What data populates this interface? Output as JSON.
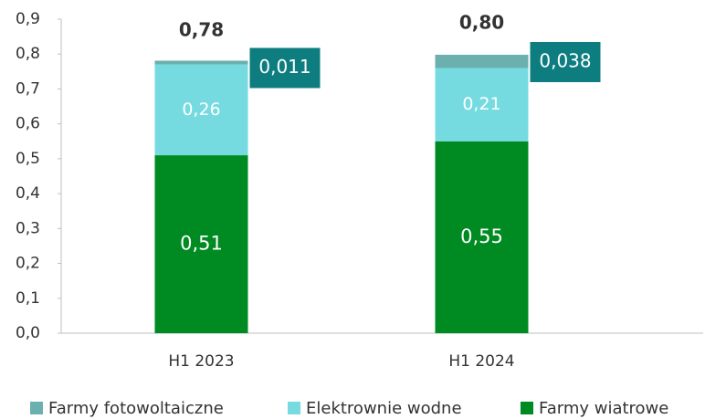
{
  "chart_data": {
    "type": "stacked_bar",
    "categories": [
      "H1 2023",
      "H1 2024"
    ],
    "series": [
      {
        "name": "Farmy fotowoltaiczne",
        "color": "#6bb0ae",
        "values": [
          0.011,
          0.038
        ],
        "value_labels": [
          "0,011",
          "0,038"
        ]
      },
      {
        "name": "Elektrownie wodne",
        "color": "#76dbe0",
        "values": [
          0.26,
          0.21
        ],
        "value_labels": [
          "0,26",
          "0,21"
        ]
      },
      {
        "name": "Farmy wiatrowe",
        "color": "#008a22",
        "values": [
          0.51,
          0.55
        ],
        "value_labels": [
          "0,51",
          "0,55"
        ]
      }
    ],
    "totals": [
      0.78,
      0.8
    ],
    "total_labels": [
      "0,78",
      "0,80"
    ],
    "label_box_color": "#0e7d80",
    "ylim": [
      0,
      0.9
    ],
    "yticks": [
      {
        "value": 0,
        "label": "0,0"
      },
      {
        "value": 0.1,
        "label": "0,1"
      },
      {
        "value": 0.2,
        "label": "0,2"
      },
      {
        "value": 0.3,
        "label": "0,3"
      },
      {
        "value": 0.4,
        "label": "0,4"
      },
      {
        "value": 0.5,
        "label": "0,5"
      },
      {
        "value": 0.6,
        "label": "0,6"
      },
      {
        "value": 0.7,
        "label": "0,7"
      },
      {
        "value": 0.8,
        "label": "0,8"
      },
      {
        "value": 0.9,
        "label": "0,9"
      }
    ],
    "grid": false,
    "legend": "bottom"
  }
}
